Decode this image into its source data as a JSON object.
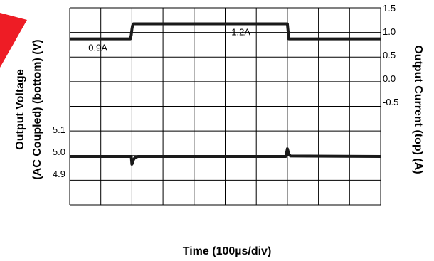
{
  "chart_data": {
    "type": "line",
    "title": "",
    "xlabel": "Time (100µs/div)",
    "grid": true,
    "divisions": {
      "x": 10,
      "y": 8
    },
    "left_axis": {
      "label_lines": [
        "Output Voltage",
        "(AC Coupled) (bottom) (V)"
      ],
      "ticks": [
        "5.1",
        "5.0",
        "4.9"
      ],
      "tick_values": [
        5.1,
        5.0,
        4.9
      ]
    },
    "right_axis": {
      "label": "Output Current (top) (A)",
      "ticks": [
        "1.5",
        "1.0",
        "0.5",
        "0.0",
        "-0.5"
      ],
      "tick_values": [
        1.5,
        1.0,
        0.5,
        0.0,
        -0.5
      ]
    },
    "annotations": [
      {
        "text": "0.9A",
        "series": "current",
        "x": 0.6
      },
      {
        "text": "1.2A",
        "series": "current",
        "x": 5.2
      }
    ],
    "series": [
      {
        "key": "current",
        "unit": "A",
        "x": [
          0,
          1.95,
          1.98,
          2.0,
          2.02,
          2.05,
          7.0,
          7.02,
          7.05,
          10
        ],
        "values": [
          0.9,
          0.9,
          0.98,
          1.1,
          1.18,
          1.22,
          1.22,
          1.08,
          0.9,
          0.9
        ]
      },
      {
        "key": "voltage",
        "unit": "V",
        "x": [
          0,
          1.98,
          2.0,
          2.02,
          2.05,
          2.1,
          2.2,
          6.95,
          7.0,
          7.02,
          7.05,
          7.1,
          10
        ],
        "values": [
          5.0,
          5.0,
          4.965,
          4.97,
          4.985,
          4.995,
          5.0,
          5.0,
          5.035,
          5.025,
          5.01,
          5.002,
          5.0
        ]
      }
    ],
    "colors": {
      "trace": "#1a1a1a",
      "grid": "#000000",
      "badge": "#ee1c25"
    }
  }
}
